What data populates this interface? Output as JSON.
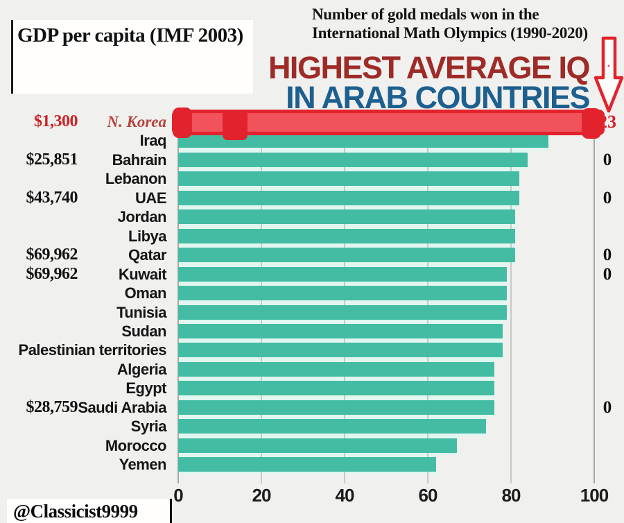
{
  "annotations": {
    "gdp_box_title": "GDP per capita (IMF 2003)",
    "medals_note_line1": "Number of gold medals won in the",
    "medals_note_line2": "International Math Olympics (1990-2020)",
    "watermark": "@Classicist9999"
  },
  "title": {
    "line1": "HIGHEST AVERAGE IQ",
    "line2": "IN ARAB COUNTRIES"
  },
  "colors": {
    "bar_teal": "#44bca4",
    "bar_track_pale": "#e2f6f0",
    "background": "#f0f0ee",
    "title_red": "#9e2b27",
    "title_blue": "#1d5f8e",
    "annotation_red": "#e2232d",
    "annotation_red_fill": "#f1525c"
  },
  "chart_data": {
    "type": "bar",
    "orientation": "horizontal",
    "title": "HIGHEST AVERAGE IQ IN ARAB COUNTRIES",
    "value_label": "Average IQ",
    "xlim": [
      0,
      103
    ],
    "x_ticks": [
      0,
      20,
      40,
      60,
      80,
      100
    ],
    "grid": true,
    "left_column_label": "GDP per capita (IMF 2003)",
    "right_column_label": "Number of gold medals won in the International Math Olympics (1990-2020)",
    "rows": [
      {
        "country": "N. Korea",
        "iq": 102,
        "gdp": "$1,300",
        "medals": "23",
        "highlight": true
      },
      {
        "country": "Iraq",
        "iq": 89,
        "gdp": "",
        "medals": "",
        "highlight": false
      },
      {
        "country": "Bahrain",
        "iq": 84,
        "gdp": "$25,851",
        "medals": "0",
        "highlight": false
      },
      {
        "country": "Lebanon",
        "iq": 82,
        "gdp": "",
        "medals": "",
        "highlight": false
      },
      {
        "country": "UAE",
        "iq": 82,
        "gdp": "$43,740",
        "medals": "0",
        "highlight": false
      },
      {
        "country": "Jordan",
        "iq": 81,
        "gdp": "",
        "medals": "",
        "highlight": false
      },
      {
        "country": "Libya",
        "iq": 81,
        "gdp": "",
        "medals": "",
        "highlight": false
      },
      {
        "country": "Qatar",
        "iq": 81,
        "gdp": "$69,962",
        "medals": "0",
        "highlight": false
      },
      {
        "country": "Kuwait",
        "iq": 79,
        "gdp": "$69,962",
        "medals": "0",
        "highlight": false
      },
      {
        "country": "Oman",
        "iq": 79,
        "gdp": "",
        "medals": "",
        "highlight": false
      },
      {
        "country": "Tunisia",
        "iq": 79,
        "gdp": "",
        "medals": "",
        "highlight": false
      },
      {
        "country": "Sudan",
        "iq": 78,
        "gdp": "",
        "medals": "",
        "highlight": false
      },
      {
        "country": "Palestinian territories",
        "iq": 78,
        "gdp": "",
        "medals": "",
        "highlight": false
      },
      {
        "country": "Algeria",
        "iq": 76,
        "gdp": "",
        "medals": "",
        "highlight": false
      },
      {
        "country": "Egypt",
        "iq": 76,
        "gdp": "",
        "medals": "",
        "highlight": false
      },
      {
        "country": "Saudi Arabia",
        "iq": 76,
        "gdp": "$28,759",
        "medals": "0",
        "highlight": false
      },
      {
        "country": "Syria",
        "iq": 74,
        "gdp": "",
        "medals": "",
        "highlight": false
      },
      {
        "country": "Morocco",
        "iq": 67,
        "gdp": "",
        "medals": "",
        "highlight": false
      },
      {
        "country": "Yemen",
        "iq": 62,
        "gdp": "",
        "medals": "",
        "highlight": false
      }
    ]
  }
}
